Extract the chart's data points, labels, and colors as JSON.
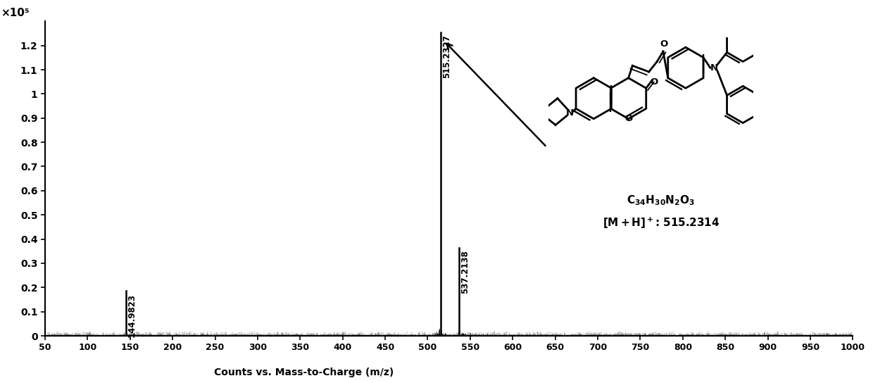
{
  "xlim": [
    50,
    1000
  ],
  "ylim": [
    0,
    1.3
  ],
  "xticks": [
    50,
    100,
    150,
    200,
    250,
    300,
    350,
    400,
    450,
    500,
    550,
    600,
    650,
    700,
    750,
    800,
    850,
    900,
    950,
    1000
  ],
  "yticks": [
    0,
    0.1,
    0.2,
    0.3,
    0.4,
    0.5,
    0.6,
    0.7,
    0.8,
    0.9,
    1.0,
    1.1,
    1.2
  ],
  "ylabel_scale": "×10⁵",
  "xlabel": "Counts vs. Mass-to-Charge (m/z)",
  "background_color": "#ffffff",
  "peaks": [
    {
      "mz": 515.2327,
      "intensity": 1.255,
      "label": "515.2327"
    },
    {
      "mz": 537.2138,
      "intensity": 0.365,
      "label": "537.2138"
    },
    {
      "mz": 144.9823,
      "intensity": 0.185,
      "label": "144.9823"
    }
  ],
  "noise_seed": 42,
  "formula_text": "C$_{34}$H$_{30}$N$_2$O$_3$",
  "mh_text": "[M+H]$^+$: 515.2314",
  "figsize": [
    12.4,
    5.44
  ],
  "dpi": 100
}
